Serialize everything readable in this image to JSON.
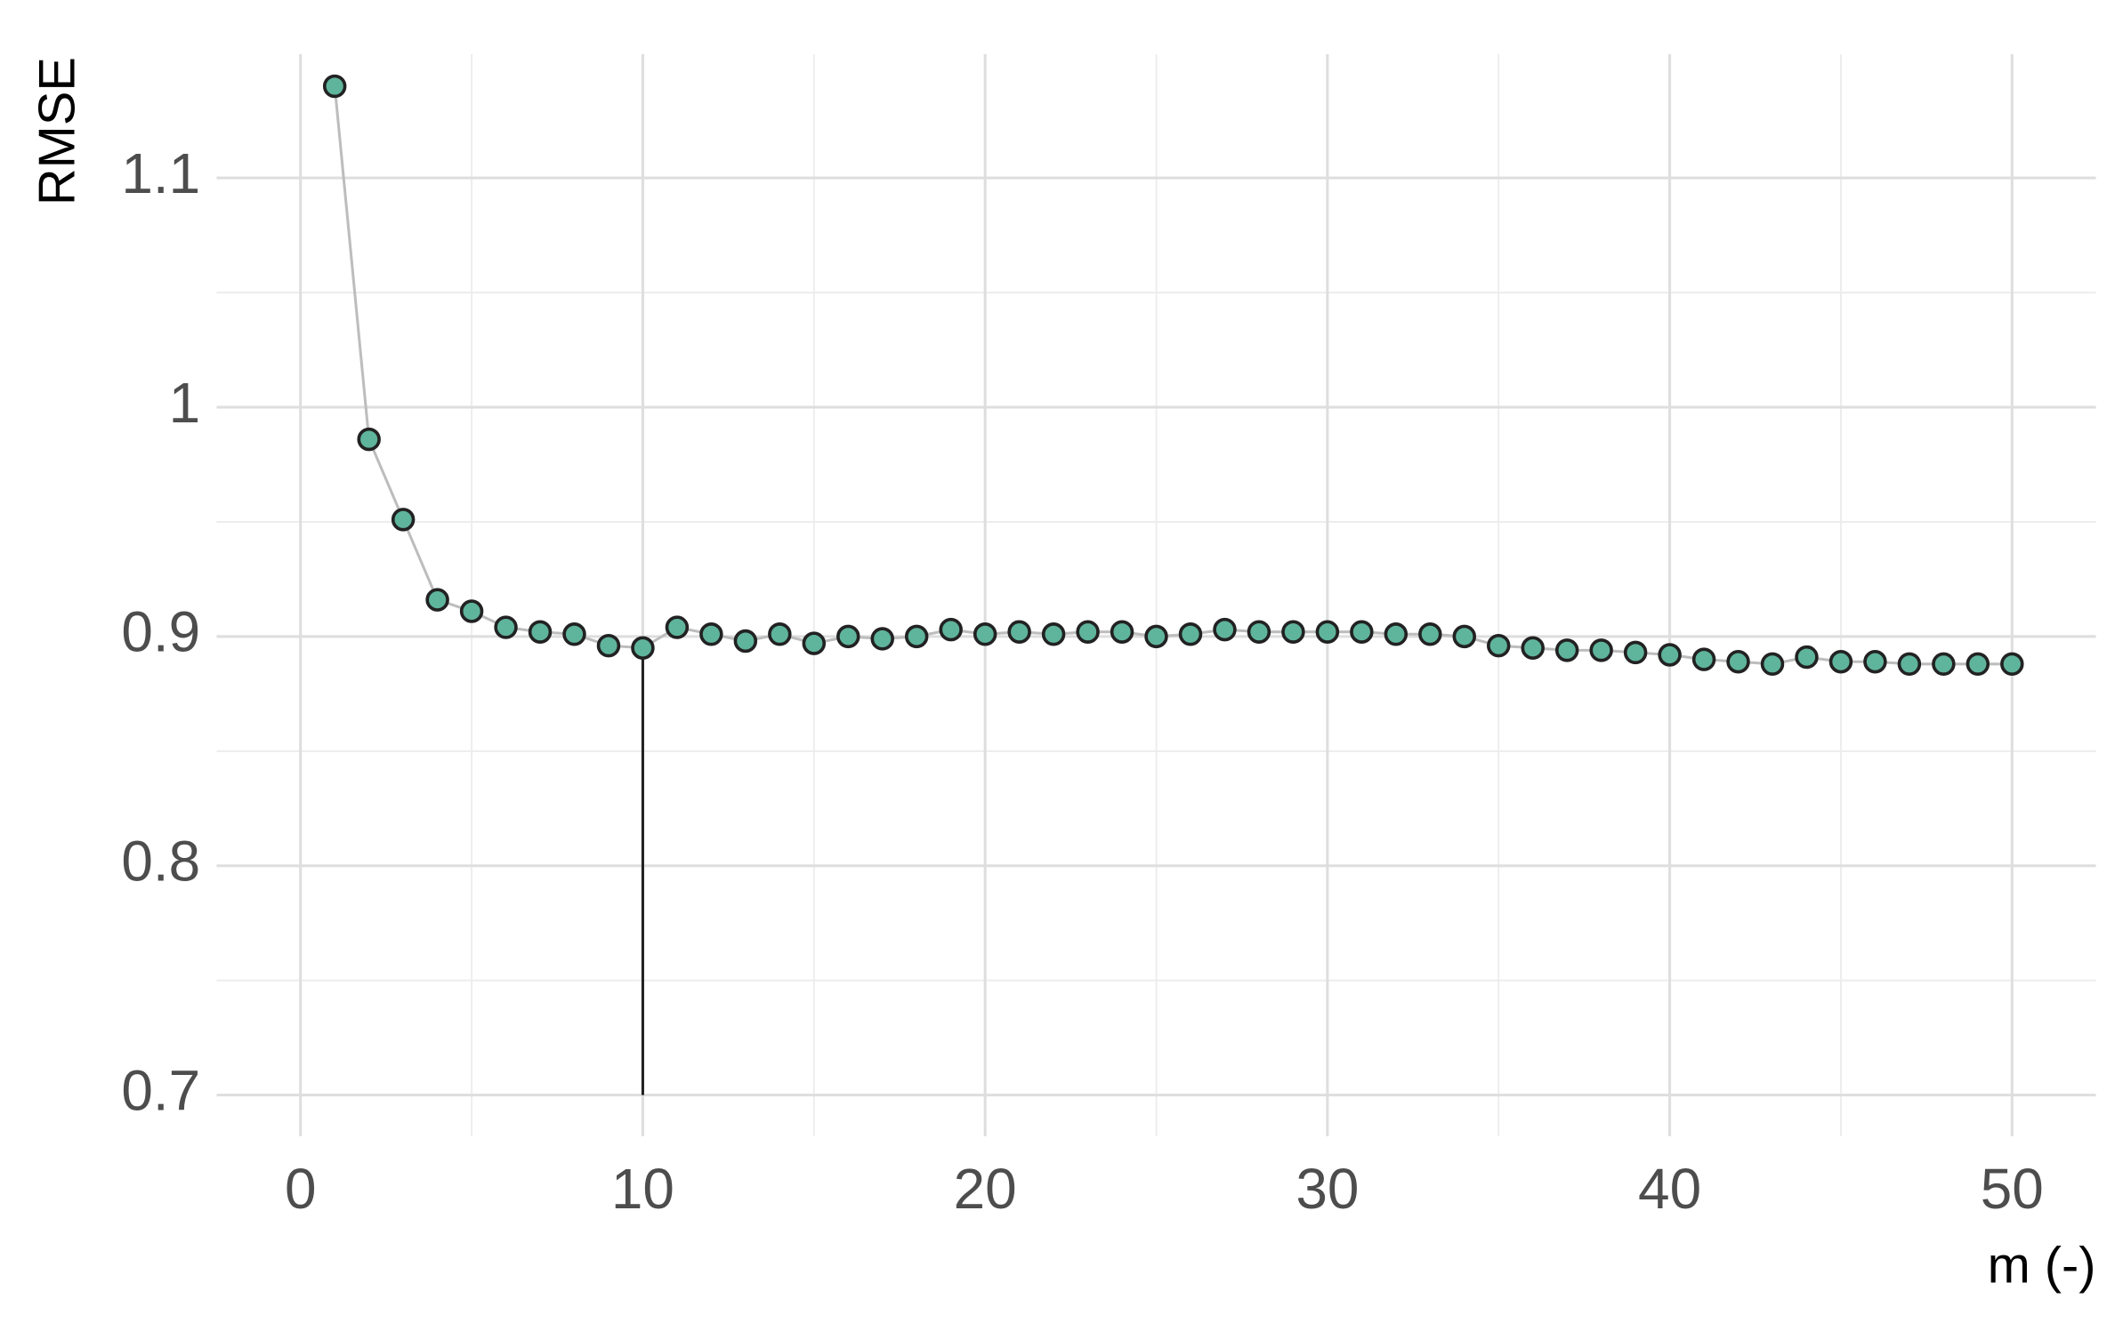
{
  "chart_data": {
    "type": "scatter",
    "x_label": "m (-)",
    "y_label": "RMSE",
    "x": [
      1,
      2,
      3,
      4,
      5,
      6,
      7,
      8,
      9,
      10,
      11,
      12,
      13,
      14,
      15,
      16,
      17,
      18,
      19,
      20,
      21,
      22,
      23,
      24,
      25,
      26,
      27,
      28,
      29,
      30,
      31,
      32,
      33,
      34,
      35,
      36,
      37,
      38,
      39,
      40,
      41,
      42,
      43,
      44,
      45,
      46,
      47,
      48,
      49,
      50
    ],
    "values": [
      1.14,
      0.986,
      0.951,
      0.916,
      0.911,
      0.904,
      0.902,
      0.901,
      0.896,
      0.895,
      0.904,
      0.901,
      0.898,
      0.901,
      0.897,
      0.9,
      0.899,
      0.9,
      0.903,
      0.901,
      0.902,
      0.901,
      0.902,
      0.902,
      0.9,
      0.901,
      0.903,
      0.902,
      0.902,
      0.902,
      0.902,
      0.901,
      0.901,
      0.9,
      0.896,
      0.895,
      0.894,
      0.894,
      0.893,
      0.892,
      0.89,
      0.889,
      0.888,
      0.891,
      0.889,
      0.889,
      0.888,
      0.888,
      0.888,
      0.888
    ],
    "color": "#5fb49c",
    "line_color": "#bdbdbd",
    "highlight_x": 10,
    "xlim": [
      -2.45,
      52.45
    ],
    "ylim": [
      0.682,
      1.154
    ],
    "xticks": [
      0,
      10,
      20,
      30,
      40,
      50
    ],
    "yticks": [
      0.7,
      0.8,
      0.9,
      1.0,
      1.1
    ],
    "grid": true
  }
}
